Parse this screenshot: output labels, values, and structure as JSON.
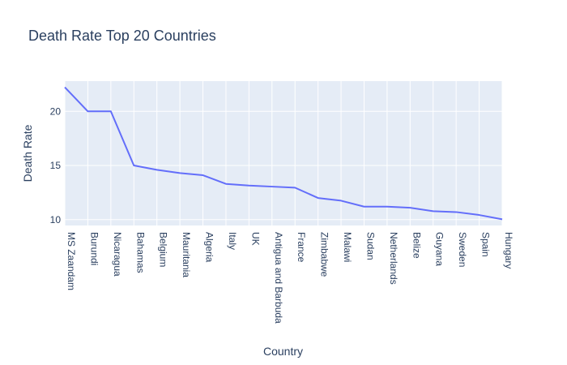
{
  "chart_data": {
    "type": "line",
    "title": "Death Rate Top 20 Countries",
    "xlabel": "Country",
    "ylabel": "Death Rate",
    "categories": [
      "MS Zaandam",
      "Burundi",
      "Nicaragua",
      "Bahamas",
      "Belgium",
      "Mauritania",
      "Algeria",
      "Italy",
      "UK",
      "Antigua and Barbuda",
      "France",
      "Zimbabwe",
      "Malawi",
      "Sudan",
      "Netherlands",
      "Belize",
      "Guyana",
      "Sweden",
      "Spain",
      "Hungary"
    ],
    "values": [
      22.22,
      20.0,
      20.0,
      15.0,
      14.6,
      14.3,
      14.1,
      13.3,
      13.15,
      13.05,
      12.95,
      12.0,
      11.75,
      11.2,
      11.2,
      11.1,
      10.78,
      10.7,
      10.43,
      10.03
    ],
    "yticks": [
      10,
      15,
      20
    ],
    "ylim": [
      9.46,
      22.79
    ],
    "grid": true,
    "legend": "none",
    "colors": {
      "line": "#636efa",
      "plot_bg": "#e5ecf6",
      "grid": "#ffffff",
      "text": "#2a3f5f"
    }
  }
}
